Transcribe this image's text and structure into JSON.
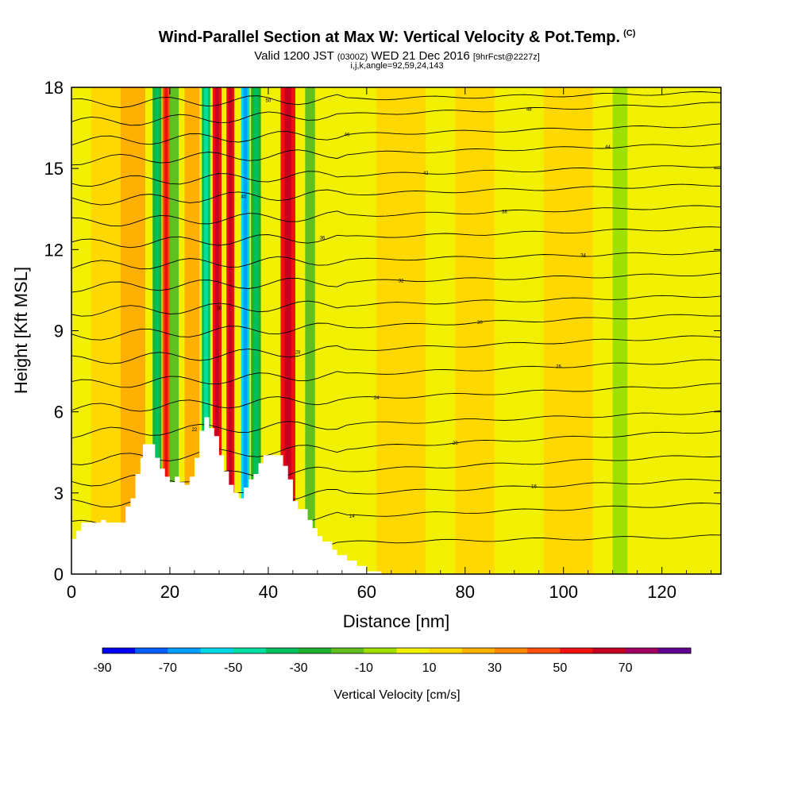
{
  "header": {
    "title": "Wind-Parallel Section at Max W: Vertical Velocity & Pot.Temp.",
    "copyright_mark": "(C)",
    "valid_prefix": "Valid 1200 JST",
    "valid_utc": "(0300Z)",
    "valid_date": "WED 21 Dec 2016",
    "forecast": "[9hrFcst@2227z]",
    "params": "i,j,k,angle=92,59,24,143"
  },
  "chart_data": {
    "type": "heatmap",
    "xlabel": "Distance [nm]",
    "ylabel": "Height [Kft MSL]",
    "xlim": [
      0,
      132
    ],
    "ylim": [
      0,
      18
    ],
    "x_ticks": [
      "0",
      "20",
      "40",
      "60",
      "80",
      "100",
      "120"
    ],
    "x_tick_values": [
      0,
      20,
      40,
      60,
      80,
      100,
      120
    ],
    "y_ticks": [
      "0",
      "3",
      "6",
      "9",
      "12",
      "15",
      "18"
    ],
    "y_tick_values": [
      0,
      3,
      6,
      9,
      12,
      15,
      18
    ],
    "terrain": [
      [
        0,
        1.3
      ],
      [
        1,
        1.3
      ],
      [
        1,
        1.6
      ],
      [
        2,
        1.6
      ],
      [
        2,
        1.9
      ],
      [
        6,
        1.9
      ],
      [
        6,
        2.0
      ],
      [
        7,
        2.0
      ],
      [
        7,
        1.9
      ],
      [
        11,
        1.9
      ],
      [
        11,
        2.5
      ],
      [
        12,
        2.5
      ],
      [
        12,
        2.8
      ],
      [
        13,
        2.8
      ],
      [
        13,
        3.7
      ],
      [
        14,
        3.7
      ],
      [
        14,
        4.3
      ],
      [
        14.5,
        4.3
      ],
      [
        14.5,
        4.8
      ],
      [
        17,
        4.8
      ],
      [
        17,
        4.3
      ],
      [
        18,
        4.3
      ],
      [
        18,
        3.9
      ],
      [
        19,
        3.9
      ],
      [
        19,
        3.6
      ],
      [
        20,
        3.6
      ],
      [
        20,
        3.4
      ],
      [
        21,
        3.4
      ],
      [
        21,
        3.6
      ],
      [
        22,
        3.6
      ],
      [
        22,
        3.4
      ],
      [
        23,
        3.4
      ],
      [
        23,
        3.3
      ],
      [
        24,
        3.3
      ],
      [
        24,
        3.6
      ],
      [
        25,
        3.6
      ],
      [
        25,
        4.3
      ],
      [
        26,
        4.3
      ],
      [
        26,
        5.3
      ],
      [
        27,
        5.3
      ],
      [
        27,
        5.8
      ],
      [
        28,
        5.8
      ],
      [
        28,
        5.4
      ],
      [
        29,
        5.4
      ],
      [
        29,
        5.1
      ],
      [
        30,
        5.1
      ],
      [
        30,
        4.4
      ],
      [
        31,
        4.4
      ],
      [
        31,
        3.8
      ],
      [
        32,
        3.8
      ],
      [
        32,
        3.3
      ],
      [
        33,
        3.3
      ],
      [
        33,
        3.0
      ],
      [
        34,
        3.0
      ],
      [
        34,
        2.8
      ],
      [
        35,
        2.8
      ],
      [
        35,
        3.2
      ],
      [
        36,
        3.2
      ],
      [
        36,
        3.5
      ],
      [
        37,
        3.5
      ],
      [
        37,
        3.7
      ],
      [
        38,
        3.7
      ],
      [
        38,
        4.1
      ],
      [
        39,
        4.1
      ],
      [
        39,
        4.4
      ],
      [
        43,
        4.4
      ],
      [
        43,
        4.0
      ],
      [
        44,
        4.0
      ],
      [
        44,
        3.5
      ],
      [
        45,
        3.5
      ],
      [
        45,
        2.7
      ],
      [
        46,
        2.7
      ],
      [
        46,
        2.4
      ],
      [
        48,
        2.4
      ],
      [
        48,
        2.0
      ],
      [
        49,
        2.0
      ],
      [
        49,
        1.7
      ],
      [
        50,
        1.7
      ],
      [
        50,
        1.4
      ],
      [
        51,
        1.4
      ],
      [
        51,
        1.2
      ],
      [
        53,
        1.2
      ],
      [
        53,
        0.9
      ],
      [
        54,
        0.9
      ],
      [
        54,
        0.7
      ],
      [
        56,
        0.7
      ],
      [
        56,
        0.5
      ],
      [
        58,
        0.5
      ],
      [
        58,
        0.3
      ],
      [
        60,
        0.3
      ],
      [
        60,
        0.1
      ],
      [
        63,
        0.1
      ],
      [
        63,
        0
      ]
    ],
    "w_columns": [
      {
        "x": 4,
        "w": 6,
        "value": 10
      },
      {
        "x": 10,
        "w": 5,
        "value": 20
      },
      {
        "x": 16.5,
        "w": 1.8,
        "value": -30
      },
      {
        "x": 18.5,
        "w": 1.5,
        "value": 40
      },
      {
        "x": 20,
        "w": 1.8,
        "value": -20
      },
      {
        "x": 23,
        "w": 3,
        "value": 20
      },
      {
        "x": 26.5,
        "w": 1.7,
        "value": -40
      },
      {
        "x": 28.7,
        "w": 1.8,
        "value": 50
      },
      {
        "x": 31.5,
        "w": 1.6,
        "value": 50
      },
      {
        "x": 34.5,
        "w": 1.7,
        "value": -60
      },
      {
        "x": 36.5,
        "w": 2,
        "value": -30
      },
      {
        "x": 42.5,
        "w": 3,
        "value": 50
      },
      {
        "x": 47.5,
        "w": 2,
        "value": -20
      },
      {
        "x": 62,
        "w": 10,
        "value": 10
      },
      {
        "x": 78,
        "w": 8,
        "value": 10
      },
      {
        "x": 96,
        "w": 10,
        "value": 10
      },
      {
        "x": 110,
        "w": 3,
        "value": -10
      }
    ],
    "theta_contours": [
      {
        "label": "12",
        "y0": 1.0,
        "y1": 1.4
      },
      {
        "label": "14",
        "y0": 1.8,
        "y1": 2.6
      },
      {
        "label": "16",
        "y0": 2.6,
        "y1": 3.5
      },
      {
        "label": "18",
        "y0": 3.4,
        "y1": 4.4
      },
      {
        "label": "20",
        "y0": 4.2,
        "y1": 5.3
      },
      {
        "label": "22",
        "y0": 5.2,
        "y1": 6.0
      },
      {
        "label": "24",
        "y0": 6.1,
        "y1": 7.0
      },
      {
        "label": "26",
        "y0": 7.0,
        "y1": 7.9
      },
      {
        "label": "28",
        "y0": 7.9,
        "y1": 8.8
      },
      {
        "label": "30",
        "y0": 8.8,
        "y1": 9.6
      },
      {
        "label": "30",
        "y0": 9.7,
        "y1": 10.3
      },
      {
        "label": "32",
        "y0": 10.6,
        "y1": 11.1
      },
      {
        "label": "34",
        "y0": 11.4,
        "y1": 11.9
      },
      {
        "label": "36",
        "y0": 12.2,
        "y1": 12.8
      },
      {
        "label": "38",
        "y0": 13.0,
        "y1": 13.6
      },
      {
        "label": "40",
        "y0": 13.8,
        "y1": 14.4
      },
      {
        "label": "42",
        "y0": 14.5,
        "y1": 15.1
      },
      {
        "label": "44",
        "y0": 15.3,
        "y1": 15.9
      },
      {
        "label": "46",
        "y0": 16.0,
        "y1": 16.6
      },
      {
        "label": "48",
        "y0": 16.7,
        "y1": 17.4
      },
      {
        "label": "50",
        "y0": 17.4,
        "y1": 17.8
      }
    ],
    "colorbar": {
      "title": "Vertical Velocity [cm/s]",
      "labels": [
        "-90",
        "-70",
        "-50",
        "-30",
        "-10",
        "10",
        "30",
        "50",
        "70"
      ],
      "bins": [
        -90,
        -80,
        -70,
        -60,
        -50,
        -40,
        -30,
        -20,
        -10,
        0,
        10,
        20,
        30,
        40,
        50,
        60,
        70,
        80
      ],
      "colors": [
        "#0000f0",
        "#0060ff",
        "#00a0ff",
        "#00d8e8",
        "#00e0a0",
        "#00c060",
        "#20b030",
        "#60c020",
        "#a0e000",
        "#f0f000",
        "#ffd800",
        "#ffb000",
        "#ff8800",
        "#ff5010",
        "#f01010",
        "#c80020",
        "#a00060",
        "#600090"
      ]
    },
    "background_color": "#f0f000"
  }
}
